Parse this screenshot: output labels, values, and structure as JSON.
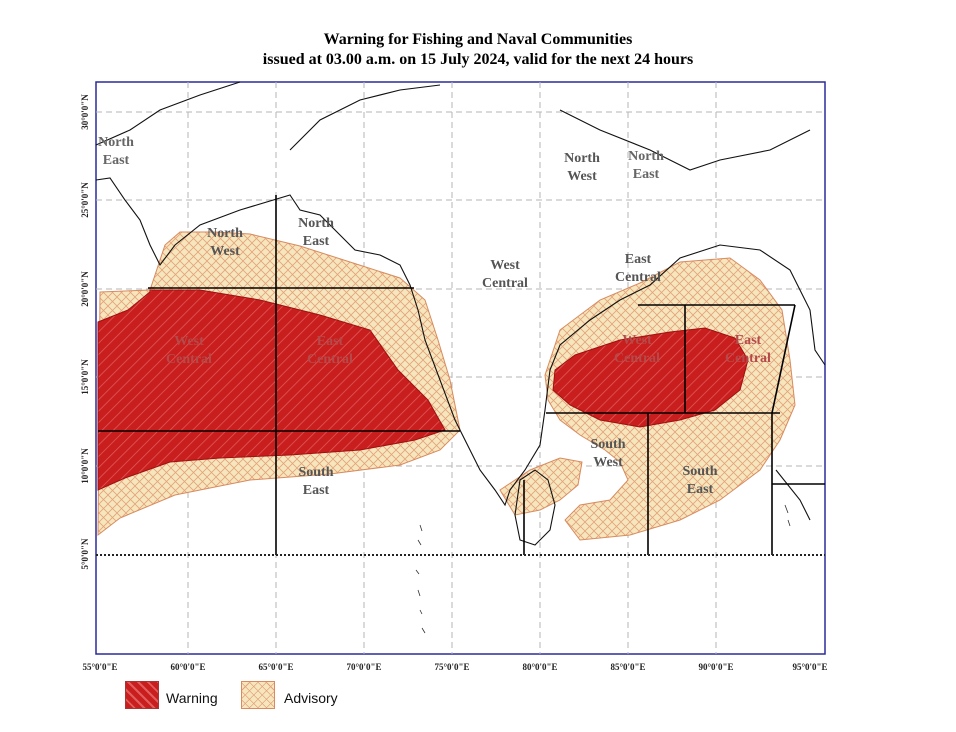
{
  "title": {
    "line1": "Warning for Fishing and Naval Communities",
    "line2": "issued at 03.00 a.m.  on 15 July 2024, valid for the next 24 hours"
  },
  "axes": {
    "x_ticks": [
      "55°0'0\"E",
      "60°0'0\"E",
      "65°0'0\"E",
      "70°0'0\"E",
      "75°0'0\"E",
      "80°0'0\"E",
      "85°0'0\"E",
      "90°0'0\"E",
      "95°0'0\"E"
    ],
    "y_ticks": [
      "30°0'0\"N",
      "25°0'0\"N",
      "20°0'0\"N",
      "15°0'0\"N",
      "10°0'0\"N",
      "5°0'0\"N"
    ]
  },
  "region_labels": [
    {
      "id": "as-ne-corner",
      "lines": [
        "North",
        "East"
      ],
      "color": "#666666"
    },
    {
      "id": "as-nw",
      "lines": [
        "North",
        "West"
      ],
      "color": "#555555"
    },
    {
      "id": "as-ne",
      "lines": [
        "North",
        "East"
      ],
      "color": "#555555"
    },
    {
      "id": "as-wc",
      "lines": [
        "West",
        "Central"
      ],
      "color": "#b54a4a"
    },
    {
      "id": "as-ec",
      "lines": [
        "East",
        "Central"
      ],
      "color": "#b54a4a"
    },
    {
      "id": "as-se",
      "lines": [
        "South",
        "East"
      ],
      "color": "#555555"
    },
    {
      "id": "wc-mid",
      "lines": [
        "West",
        "Central"
      ],
      "color": "#555555"
    },
    {
      "id": "bob-nw",
      "lines": [
        "North",
        "West"
      ],
      "color": "#555555"
    },
    {
      "id": "bob-ne",
      "lines": [
        "North",
        "East"
      ],
      "color": "#666666"
    },
    {
      "id": "bob-ec-top",
      "lines": [
        "East",
        "Central"
      ],
      "color": "#555555"
    },
    {
      "id": "bob-wc",
      "lines": [
        "West",
        "Central"
      ],
      "color": "#b54a4a"
    },
    {
      "id": "bob-ec",
      "lines": [
        "East",
        "Central"
      ],
      "color": "#b54a4a"
    },
    {
      "id": "bob-sw",
      "lines": [
        "South",
        "West"
      ],
      "color": "#555555"
    },
    {
      "id": "bob-se",
      "lines": [
        "South",
        "East"
      ],
      "color": "#555555"
    }
  ],
  "legend": {
    "warning": {
      "label": "Warning",
      "color": "#cc1f1f"
    },
    "advisory": {
      "label": "Advisory",
      "color": "#f5e3b3"
    }
  },
  "colors": {
    "frame": "#2a2a9a",
    "grid": "#b5b5b5",
    "warning_fill": "#c81e1e",
    "advisory_fill": "#f6e6bd",
    "advisory_hatch": "#e5a27a"
  }
}
